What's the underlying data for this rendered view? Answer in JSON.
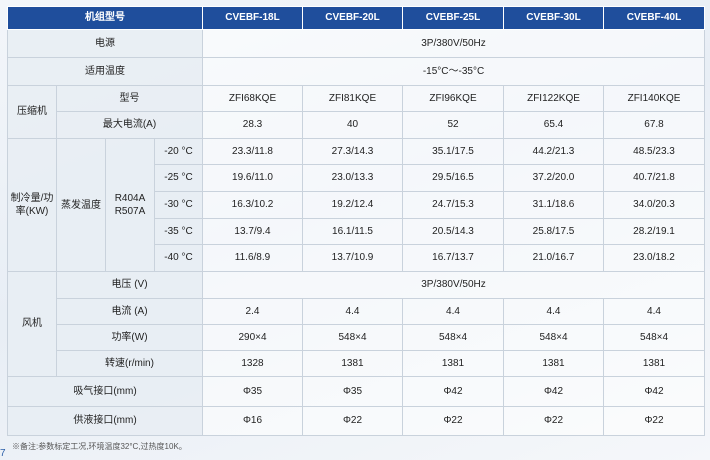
{
  "header": {
    "model_label": "机组型号",
    "models": [
      "CVEBF-18L",
      "CVEBF-20L",
      "CVEBF-25L",
      "CVEBF-30L",
      "CVEBF-40L"
    ]
  },
  "power": {
    "label": "电源",
    "value": "3P/380V/50Hz"
  },
  "temp_range": {
    "label": "适用温度",
    "value": "-15°C～-35°C"
  },
  "compressor": {
    "group_label": "压缩机",
    "type_label": "型号",
    "types": [
      "ZFI68KQE",
      "ZFI81KQE",
      "ZFI96KQE",
      "ZFI122KQE",
      "ZFI140KQE"
    ],
    "current_label": "最大电流(A)",
    "currents": [
      "28.3",
      "40",
      "52",
      "65.4",
      "67.8"
    ]
  },
  "cooling": {
    "group_label": "制冷量/功率(KW)",
    "evap_label": "蒸发温度",
    "refrigerant_label": "R404A R507A",
    "rows": [
      {
        "temp": "-20 °C",
        "values": [
          "23.3/11.8",
          "27.3/14.3",
          "35.1/17.5",
          "44.2/21.3",
          "48.5/23.3"
        ]
      },
      {
        "temp": "-25 °C",
        "values": [
          "19.6/11.0",
          "23.0/13.3",
          "29.5/16.5",
          "37.2/20.0",
          "40.7/21.8"
        ]
      },
      {
        "temp": "-30 °C",
        "values": [
          "16.3/10.2",
          "19.2/12.4",
          "24.7/15.3",
          "31.1/18.6",
          "34.0/20.3"
        ]
      },
      {
        "temp": "-35 °C",
        "values": [
          "13.7/9.4",
          "16.1/11.5",
          "20.5/14.3",
          "25.8/17.5",
          "28.2/19.1"
        ]
      },
      {
        "temp": "-40 °C",
        "values": [
          "11.6/8.9",
          "13.7/10.9",
          "16.7/13.7",
          "21.0/16.7",
          "23.0/18.2"
        ]
      }
    ]
  },
  "fan": {
    "group_label": "风机",
    "voltage_label": "电压 (V)",
    "voltage_value": "3P/380V/50Hz",
    "current_label": "电流 (A)",
    "currents": [
      "2.4",
      "4.4",
      "4.4",
      "4.4",
      "4.4"
    ],
    "power_label": "功率(W)",
    "powers": [
      "290×4",
      "548×4",
      "548×4",
      "548×4",
      "548×4"
    ],
    "speed_label": "转速(r/min)",
    "speeds": [
      "1328",
      "1381",
      "1381",
      "1381",
      "1381"
    ]
  },
  "suction": {
    "label": "吸气接口(mm)",
    "values": [
      "Φ35",
      "Φ35",
      "Φ42",
      "Φ42",
      "Φ42"
    ]
  },
  "liquid": {
    "label": "供液接口(mm)",
    "values": [
      "Φ16",
      "Φ22",
      "Φ22",
      "Φ22",
      "Φ22"
    ]
  },
  "note": "※备注:参数标定工况,环境温度32°C,过热度10K。",
  "corner_mark": "7"
}
